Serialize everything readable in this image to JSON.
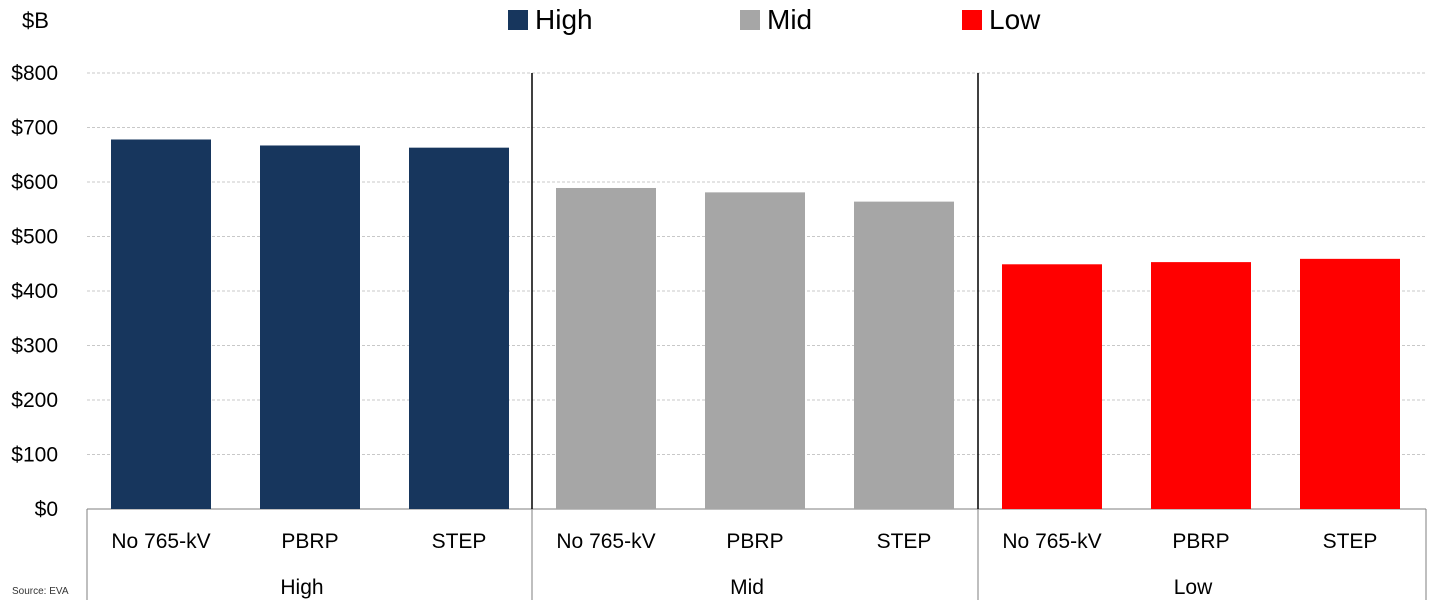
{
  "chart_data": {
    "type": "bar",
    "unit_label": "$B",
    "source": "Source: EVA",
    "y_ticks": [
      "$0",
      "$100",
      "$200",
      "$300",
      "$400",
      "$500",
      "$600",
      "$700",
      "$800"
    ],
    "ylim": [
      0,
      800
    ],
    "grid": true,
    "legend_position": "top-center",
    "groups": [
      {
        "name": "High",
        "color": "#17365d",
        "categories": [
          "No 765-kV",
          "PBRP",
          "STEP"
        ],
        "values": [
          678,
          667,
          663
        ]
      },
      {
        "name": "Mid",
        "color": "#a6a6a6",
        "categories": [
          "No 765-kV",
          "PBRP",
          "STEP"
        ],
        "values": [
          589,
          581,
          564
        ]
      },
      {
        "name": "Low",
        "color": "#ff0000",
        "categories": [
          "No 765-kV",
          "PBRP",
          "STEP"
        ],
        "values": [
          449,
          453,
          459
        ]
      }
    ]
  }
}
